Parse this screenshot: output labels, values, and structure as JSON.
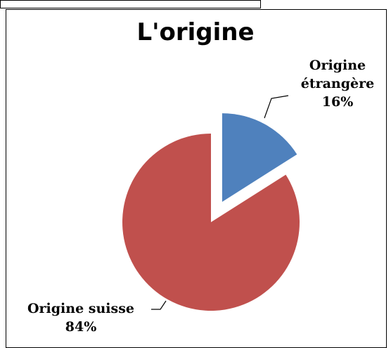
{
  "chart_data": {
    "type": "pie",
    "title": "L'origine",
    "categories": [
      "Origine étrangère",
      "Origine suisse"
    ],
    "values": [
      16,
      84
    ],
    "value_labels": [
      "16%",
      "84%"
    ],
    "colors": [
      "#4f81bd",
      "#c0504d"
    ]
  }
}
